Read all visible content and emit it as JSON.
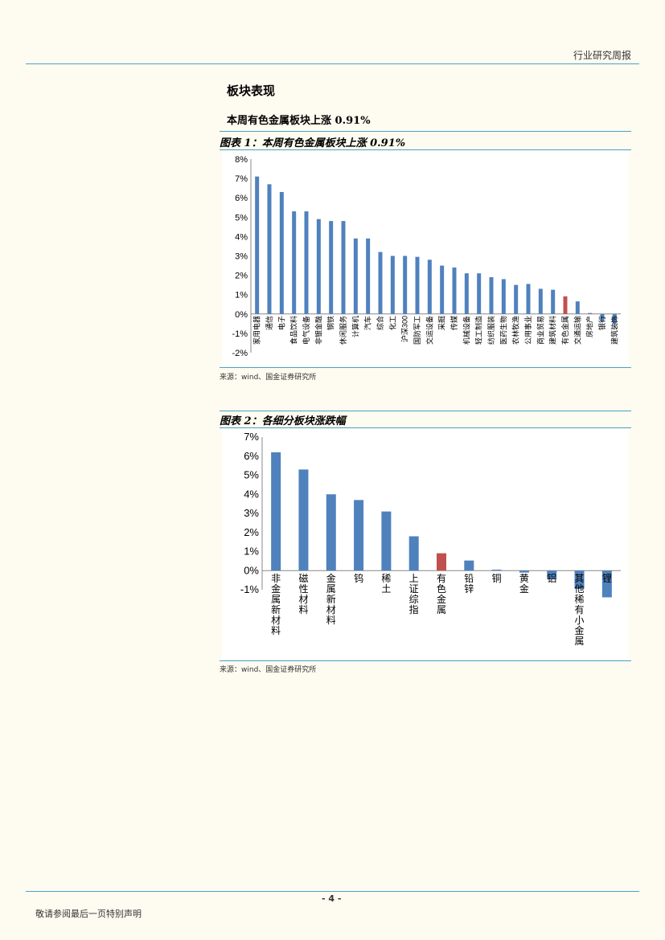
{
  "header": {
    "title": "行业研究周报"
  },
  "section": {
    "title": "板块表现",
    "subtitle": "本周有色金属板块上涨 0.91%"
  },
  "figure1": {
    "caption": "图表 1：本周有色金属板块上涨 0.91%",
    "source": "来源：wind、国金证券研究所"
  },
  "figure2": {
    "caption": "图表 2：各细分板块涨跌幅",
    "source": "来源：wind、国金证券研究所"
  },
  "footer": {
    "page": "- 4 -",
    "disclaimer": "敬请参阅最后一页特别声明"
  },
  "colors": {
    "bar": "#4f81bd",
    "highlight": "#c0504d"
  },
  "chart_data": [
    {
      "type": "bar",
      "title": "",
      "ylim": [
        -2,
        8
      ],
      "yticks": [
        "-2%",
        "-1%",
        "0%",
        "1%",
        "2%",
        "3%",
        "4%",
        "5%",
        "6%",
        "7%",
        "8%"
      ],
      "highlight": "有色金属",
      "categories": [
        "家用电器",
        "通信",
        "电子",
        "食品饮料",
        "电气设备",
        "非银金融",
        "钢铁",
        "休闲服务",
        "计算机",
        "汽车",
        "综合",
        "化工",
        "沪深300",
        "国防军工",
        "交运设备",
        "采掘",
        "传媒",
        "机械设备",
        "轻工制造",
        "纺织服装",
        "医药生物",
        "农林牧渔",
        "公用事业",
        "商业贸易",
        "建筑材料",
        "有色金属",
        "交通运输",
        "房地产",
        "银行",
        "建筑装饰"
      ],
      "values": [
        7.1,
        6.7,
        6.3,
        5.3,
        5.3,
        4.9,
        4.8,
        4.8,
        3.9,
        3.9,
        3.2,
        3.0,
        3.0,
        2.95,
        2.8,
        2.5,
        2.4,
        2.1,
        2.1,
        1.9,
        1.8,
        1.5,
        1.55,
        1.3,
        1.25,
        0.91,
        0.65,
        0.05,
        -0.4,
        -0.5
      ]
    },
    {
      "type": "bar",
      "title": "",
      "ylim": [
        -1,
        7
      ],
      "yticks": [
        "-1%",
        "0%",
        "1%",
        "2%",
        "3%",
        "4%",
        "5%",
        "6%",
        "7%"
      ],
      "highlight": "有色金属",
      "categories": [
        "非金属新材料",
        "磁性材料",
        "金属新材料",
        "钨",
        "稀土",
        "上证综指",
        "有色金属",
        "铅锌",
        "铜",
        "黄金",
        "铝",
        "其他稀有小金属",
        "锂"
      ],
      "values": [
        6.2,
        5.3,
        4.0,
        3.7,
        3.1,
        1.8,
        0.91,
        0.53,
        0.05,
        -0.1,
        -0.45,
        -0.95,
        -1.4
      ]
    }
  ]
}
